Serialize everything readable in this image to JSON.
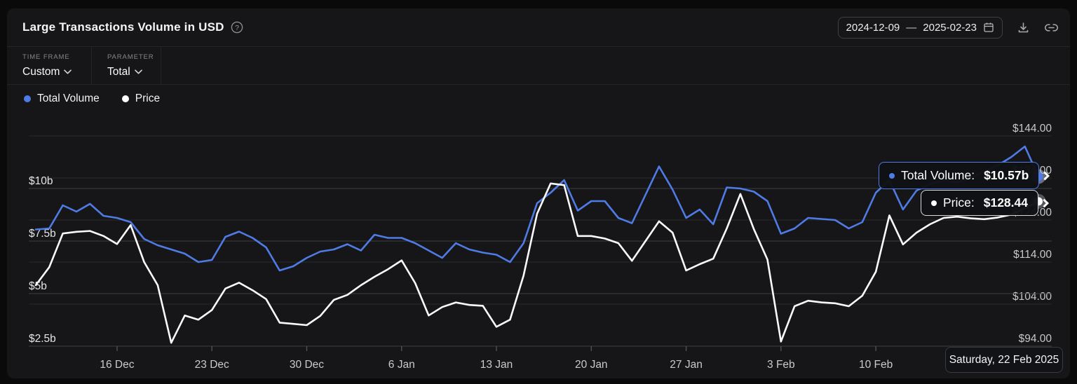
{
  "header": {
    "title": "Large Transactions Volume in USD",
    "date_range": {
      "start": "2024-12-09",
      "separator": "—",
      "end": "2025-02-23"
    }
  },
  "controls": {
    "timeframe_label": "TIME FRAME",
    "timeframe_value": "Custom",
    "parameter_label": "PARAMETER",
    "parameter_value": "Total"
  },
  "legend": [
    {
      "label": "Total Volume",
      "color": "#4F7BE5"
    },
    {
      "label": "Price",
      "color": "#FFFFFF"
    }
  ],
  "tooltips": {
    "volume": {
      "label": "Total Volume:",
      "value": "$10.57b"
    },
    "price": {
      "label": "Price:",
      "value": "$128.44"
    },
    "date": {
      "text": "Saturday, 22 Feb 2025"
    }
  },
  "colors": {
    "volume_line": "#4F7BE5",
    "price_line": "#FAFAFA",
    "grid_minor": "#28292c",
    "grid_major": "#3c3d41",
    "axis_left_text": "#e4e5e7",
    "axis_right_text": "#c7c8cb",
    "axis_x_text": "#c9cacc"
  },
  "chart_data": {
    "type": "line",
    "title": "Large Transactions Volume in USD",
    "grid": true,
    "legend_position": "top-left",
    "x": [
      "2024-12-10",
      "2024-12-11",
      "2024-12-12",
      "2024-12-13",
      "2024-12-14",
      "2024-12-15",
      "2024-12-16",
      "2024-12-17",
      "2024-12-18",
      "2024-12-19",
      "2024-12-20",
      "2024-12-21",
      "2024-12-22",
      "2024-12-23",
      "2024-12-24",
      "2024-12-25",
      "2024-12-26",
      "2024-12-27",
      "2024-12-28",
      "2024-12-29",
      "2024-12-30",
      "2024-12-31",
      "2025-01-01",
      "2025-01-02",
      "2025-01-03",
      "2025-01-04",
      "2025-01-05",
      "2025-01-06",
      "2025-01-07",
      "2025-01-08",
      "2025-01-09",
      "2025-01-10",
      "2025-01-11",
      "2025-01-12",
      "2025-01-13",
      "2025-01-14",
      "2025-01-15",
      "2025-01-16",
      "2025-01-17",
      "2025-01-18",
      "2025-01-19",
      "2025-01-20",
      "2025-01-21",
      "2025-01-22",
      "2025-01-23",
      "2025-01-24",
      "2025-01-25",
      "2025-01-26",
      "2025-01-27",
      "2025-01-28",
      "2025-01-29",
      "2025-01-30",
      "2025-01-31",
      "2025-02-01",
      "2025-02-02",
      "2025-02-03",
      "2025-02-04",
      "2025-02-05",
      "2025-02-06",
      "2025-02-07",
      "2025-02-08",
      "2025-02-09",
      "2025-02-10",
      "2025-02-11",
      "2025-02-12",
      "2025-02-13",
      "2025-02-14",
      "2025-02-15",
      "2025-02-16",
      "2025-02-17",
      "2025-02-18",
      "2025-02-19",
      "2025-02-20",
      "2025-02-21",
      "2025-02-22"
    ],
    "series": [
      {
        "name": "Total Volume",
        "axis": "left",
        "unit": "USD billions",
        "color": "#4F7BE5",
        "values": [
          8.05,
          8.1,
          9.2,
          8.9,
          9.27,
          8.7,
          8.6,
          8.4,
          7.6,
          7.3,
          7.1,
          6.9,
          6.5,
          6.6,
          7.7,
          7.95,
          7.65,
          7.2,
          6.1,
          6.3,
          6.7,
          7.0,
          7.1,
          7.35,
          7.05,
          7.8,
          7.65,
          7.65,
          7.4,
          7.05,
          6.7,
          7.4,
          7.1,
          6.95,
          6.85,
          6.5,
          7.4,
          9.3,
          9.8,
          10.4,
          8.95,
          9.4,
          9.4,
          8.6,
          8.35,
          9.7,
          11.05,
          9.95,
          8.6,
          9.0,
          8.3,
          10.05,
          10.0,
          9.85,
          9.4,
          7.85,
          8.1,
          8.6,
          8.55,
          8.5,
          8.1,
          8.4,
          9.8,
          10.4,
          9.0,
          9.9,
          10.2,
          10.4,
          10.3,
          10.5,
          10.8,
          11.1,
          11.5,
          12.0,
          10.57
        ]
      },
      {
        "name": "Price",
        "axis": "right",
        "unit": "USD",
        "color": "#FAFAFA",
        "values": [
          108.5,
          112.8,
          120.8,
          121.2,
          121.4,
          120.2,
          118.3,
          122.8,
          114.0,
          108.5,
          94.8,
          101.3,
          100.3,
          102.6,
          107.7,
          109.1,
          107.3,
          105.2,
          99.6,
          99.3,
          99.0,
          101.2,
          105.0,
          106.2,
          108.5,
          110.5,
          112.3,
          114.4,
          109.0,
          101.3,
          103.3,
          104.4,
          103.8,
          103.6,
          98.6,
          100.3,
          110.8,
          125.5,
          132.7,
          132.3,
          120.2,
          120.2,
          119.6,
          118.5,
          114.3,
          119.0,
          123.7,
          121.0,
          112.0,
          113.5,
          114.8,
          122.0,
          130.2,
          121.8,
          114.6,
          95.1,
          103.5,
          104.8,
          104.4,
          104.2,
          103.5,
          106.0,
          111.7,
          125.1,
          118.2,
          121.0,
          123.0,
          124.5,
          124.8,
          124.4,
          124.2,
          124.6,
          125.3,
          126.8,
          128.44
        ]
      }
    ],
    "left_axis": {
      "range": [
        2.5,
        12.5
      ],
      "ticks": [
        {
          "value": 10,
          "label": "$10b"
        },
        {
          "value": 7.5,
          "label": "$7.5b"
        },
        {
          "value": 5,
          "label": "$5b"
        },
        {
          "value": 2.5,
          "label": "$2.5b"
        }
      ]
    },
    "right_axis": {
      "range": [
        94,
        144
      ],
      "ticks": [
        {
          "value": 144,
          "label": "$144.00"
        },
        {
          "value": 134,
          "label": "$134.00"
        },
        {
          "value": 124,
          "label": "$124.00"
        },
        {
          "value": 114,
          "label": "$114.00"
        },
        {
          "value": 104,
          "label": "$104.00"
        },
        {
          "value": 94,
          "label": "$94.00"
        }
      ]
    },
    "x_ticks": [
      {
        "date": "2024-12-16",
        "label": "16 Dec"
      },
      {
        "date": "2024-12-23",
        "label": "23 Dec"
      },
      {
        "date": "2024-12-30",
        "label": "30 Dec"
      },
      {
        "date": "2025-01-06",
        "label": "6 Jan"
      },
      {
        "date": "2025-01-13",
        "label": "13 Jan"
      },
      {
        "date": "2025-01-20",
        "label": "20 Jan"
      },
      {
        "date": "2025-01-27",
        "label": "27 Jan"
      },
      {
        "date": "2025-02-03",
        "label": "3 Feb"
      },
      {
        "date": "2025-02-10",
        "label": "10 Feb"
      }
    ],
    "highlight": {
      "date": "2025-02-22",
      "volume": 10.57,
      "price": 128.44,
      "volume_display": "$10.57b",
      "price_display": "$128.44"
    }
  }
}
